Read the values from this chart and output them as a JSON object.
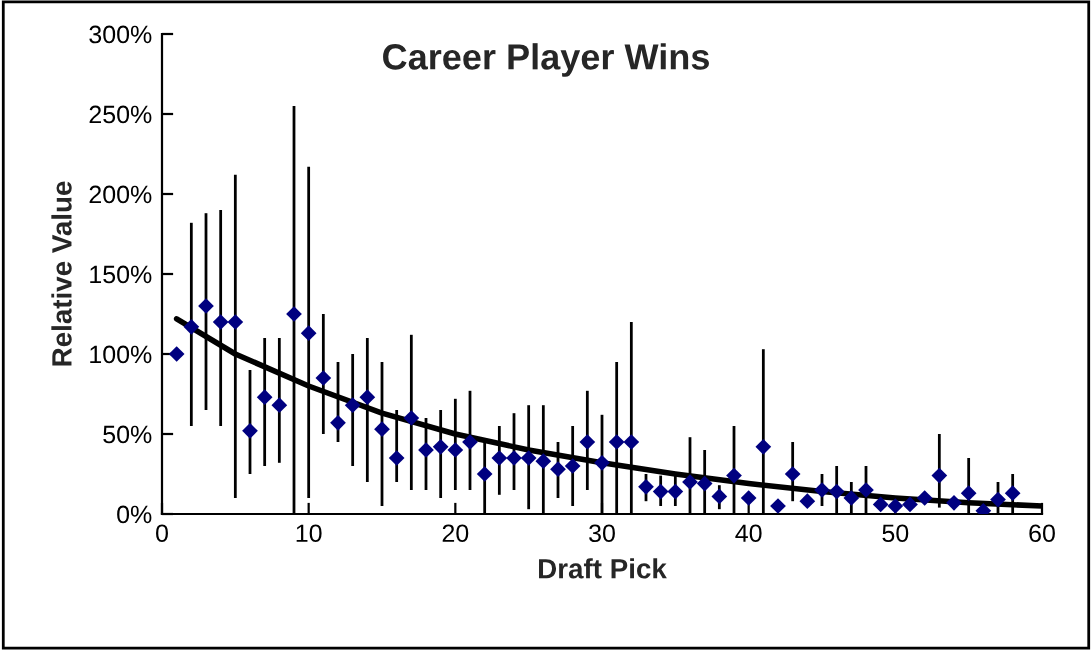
{
  "chart_data": {
    "type": "scatter",
    "title": "Career Player Wins",
    "xlabel": "Draft Pick",
    "ylabel": "Relative Value",
    "xlim": [
      0,
      60
    ],
    "xticks": [
      0,
      10,
      20,
      30,
      40,
      50,
      60
    ],
    "ylim": [
      0,
      300
    ],
    "yticks": [
      {
        "value": 0,
        "label": "0%"
      },
      {
        "value": 50,
        "label": "50%"
      },
      {
        "value": 100,
        "label": "100%"
      },
      {
        "value": 150,
        "label": "150%"
      },
      {
        "value": 200,
        "label": "200%"
      },
      {
        "value": 250,
        "label": "250%"
      },
      {
        "value": 300,
        "label": "300%"
      }
    ],
    "grid": false,
    "legend": false,
    "series": [
      {
        "type": "scatter",
        "color": "#000080",
        "marker": "diamond",
        "x": [
          1,
          2,
          3,
          4,
          5,
          6,
          7,
          8,
          9,
          10,
          11,
          12,
          13,
          14,
          15,
          16,
          17,
          18,
          19,
          20,
          21,
          22,
          23,
          24,
          25,
          26,
          27,
          28,
          29,
          30,
          31,
          32,
          33,
          34,
          35,
          36,
          37,
          38,
          39,
          40,
          41,
          42,
          43,
          44,
          45,
          46,
          47,
          48,
          49,
          50,
          51,
          52,
          53,
          54,
          55,
          56,
          57,
          58
        ],
        "values": [
          100,
          117,
          130,
          120,
          120,
          52,
          73,
          68,
          125,
          113,
          85,
          57,
          68,
          73,
          53,
          35,
          60,
          40,
          42,
          40,
          45,
          25,
          35,
          35,
          35,
          33,
          28,
          30,
          45,
          32,
          45,
          45,
          17,
          14,
          14,
          20,
          19,
          11,
          24,
          10,
          42,
          5,
          25,
          8,
          15,
          14,
          10,
          15,
          6,
          5,
          6,
          10,
          24,
          7,
          13,
          2,
          9,
          13
        ],
        "errors": [
          null,
          [
            55,
            182
          ],
          [
            65,
            188
          ],
          [
            55,
            190
          ],
          [
            10,
            212
          ],
          [
            25,
            90
          ],
          [
            30,
            110
          ],
          [
            32,
            110
          ],
          [
            0,
            255
          ],
          [
            10,
            217
          ],
          [
            50,
            125
          ],
          [
            45,
            95
          ],
          [
            30,
            100
          ],
          [
            20,
            110
          ],
          [
            5,
            95
          ],
          [
            20,
            65
          ],
          [
            15,
            112
          ],
          [
            15,
            60
          ],
          [
            10,
            65
          ],
          [
            15,
            72
          ],
          [
            15,
            77
          ],
          [
            0,
            45
          ],
          [
            12,
            55
          ],
          [
            15,
            63
          ],
          [
            3,
            68
          ],
          [
            0,
            68
          ],
          [
            10,
            45
          ],
          [
            5,
            55
          ],
          [
            15,
            77
          ],
          [
            0,
            62
          ],
          [
            0,
            95
          ],
          [
            0,
            120
          ],
          [
            8,
            25
          ],
          [
            5,
            24
          ],
          [
            5,
            24
          ],
          [
            0,
            48
          ],
          [
            0,
            40
          ],
          [
            3,
            18
          ],
          [
            0,
            55
          ],
          null,
          [
            0,
            103
          ],
          null,
          [
            8,
            45
          ],
          null,
          [
            5,
            25
          ],
          [
            0,
            30
          ],
          [
            0,
            20
          ],
          [
            0,
            30
          ],
          null,
          null,
          null,
          null,
          [
            4,
            50
          ],
          null,
          [
            0,
            35
          ],
          [
            0,
            8
          ],
          [
            0,
            20
          ],
          [
            0,
            25
          ]
        ]
      },
      {
        "type": "line",
        "color": "#000000",
        "marker": "none",
        "line_style": "solid",
        "x": [
          1,
          5,
          10,
          15,
          20,
          25,
          30,
          35,
          40,
          45,
          50,
          55,
          60
        ],
        "values": [
          122,
          100,
          80,
          63,
          50,
          40,
          32,
          25,
          19,
          14,
          10,
          7,
          5
        ]
      }
    ]
  }
}
